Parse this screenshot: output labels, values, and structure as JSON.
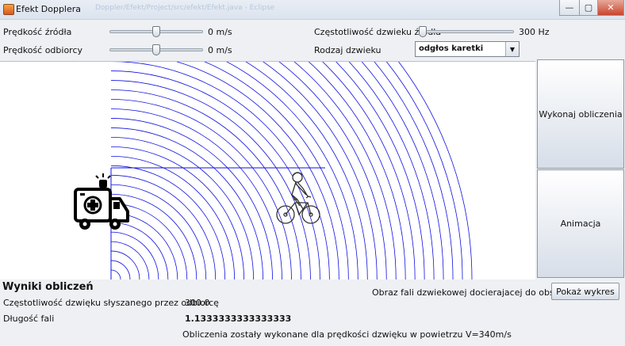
{
  "window": {
    "title": "Efekt Dopplera",
    "ghost_title": "Doppler/Efekt/Project/src/efekt/Efekt.java - Eclipse",
    "controls": {
      "minimize": "—",
      "maximize": "▢",
      "close": "✕"
    }
  },
  "controls": {
    "source_speed": {
      "label": "Prędkość źródła",
      "value": "0 m/s",
      "level": 0.5
    },
    "observer_speed": {
      "label": "Prędkość odbiorcy",
      "value": "0 m/s",
      "level": 0.5
    },
    "source_frequency": {
      "label": "Częstotliwość dzwieku źródła",
      "value": "300 Hz",
      "level": 0.0
    },
    "sound_type": {
      "label": "Rodzaj dzwieku",
      "selected": "odgłos karetki"
    }
  },
  "buttons": {
    "compute": "Wykonaj obliczenia",
    "animate": "Animacja",
    "show_chart": "Pokaż wykres"
  },
  "results": {
    "heading": "Wyniki obliczeń",
    "heard_freq_label": "Częstotliwość dzwięku słyszanego przez odbiorcę",
    "heard_freq_value": "300.0",
    "wavelength_label": "Długość fali",
    "wavelength_value": "1.1333333333333333",
    "wave_image_label": "Obraz fali dzwiekowej docierajacej do obserwatora",
    "footer": "Obliczenia zostały wykonane dla prędkości dzwięku w powietrzu V=340m/s"
  },
  "visual": {
    "wave_color": "#1010e0",
    "icons": [
      "ambulance-icon",
      "cyclist-icon"
    ]
  }
}
